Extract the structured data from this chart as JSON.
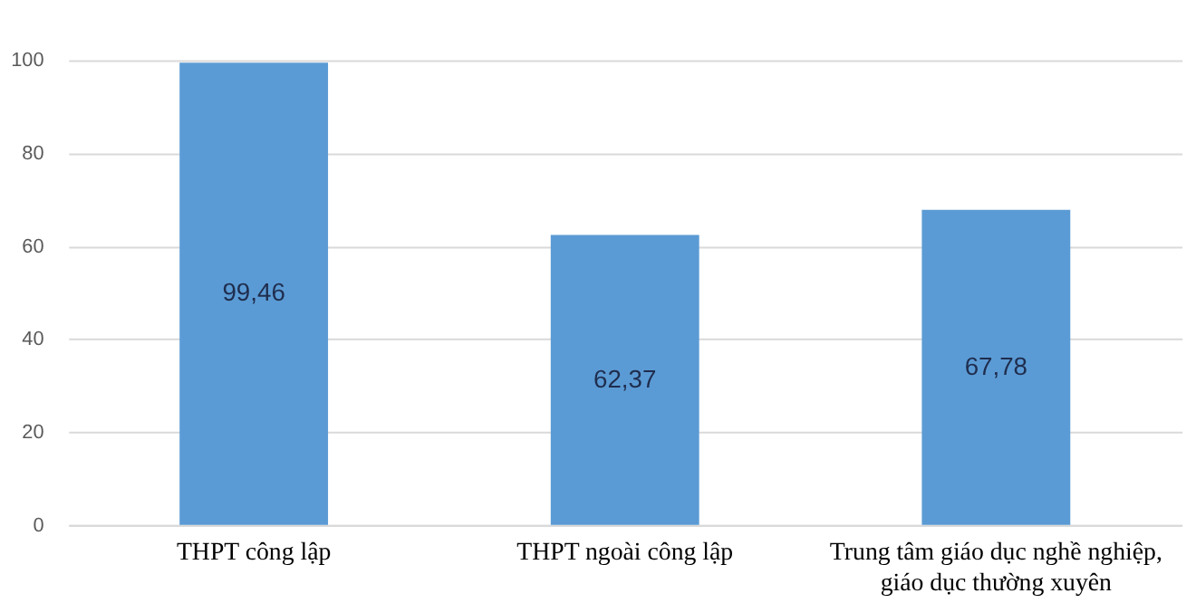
{
  "chart_data": {
    "type": "bar",
    "categories": [
      "THPT công lập",
      "THPT ngoài công lập",
      "Trung tâm giáo dục nghề nghiệp, giáo dục thường xuyên"
    ],
    "values": [
      99.46,
      62.37,
      67.78
    ],
    "value_labels": [
      "99,46",
      "62,37",
      "67,78"
    ],
    "color": "#5b9bd5",
    "ylim": [
      0,
      100
    ],
    "yticks": [
      0,
      20,
      40,
      60,
      80,
      100
    ],
    "grid": "y"
  }
}
